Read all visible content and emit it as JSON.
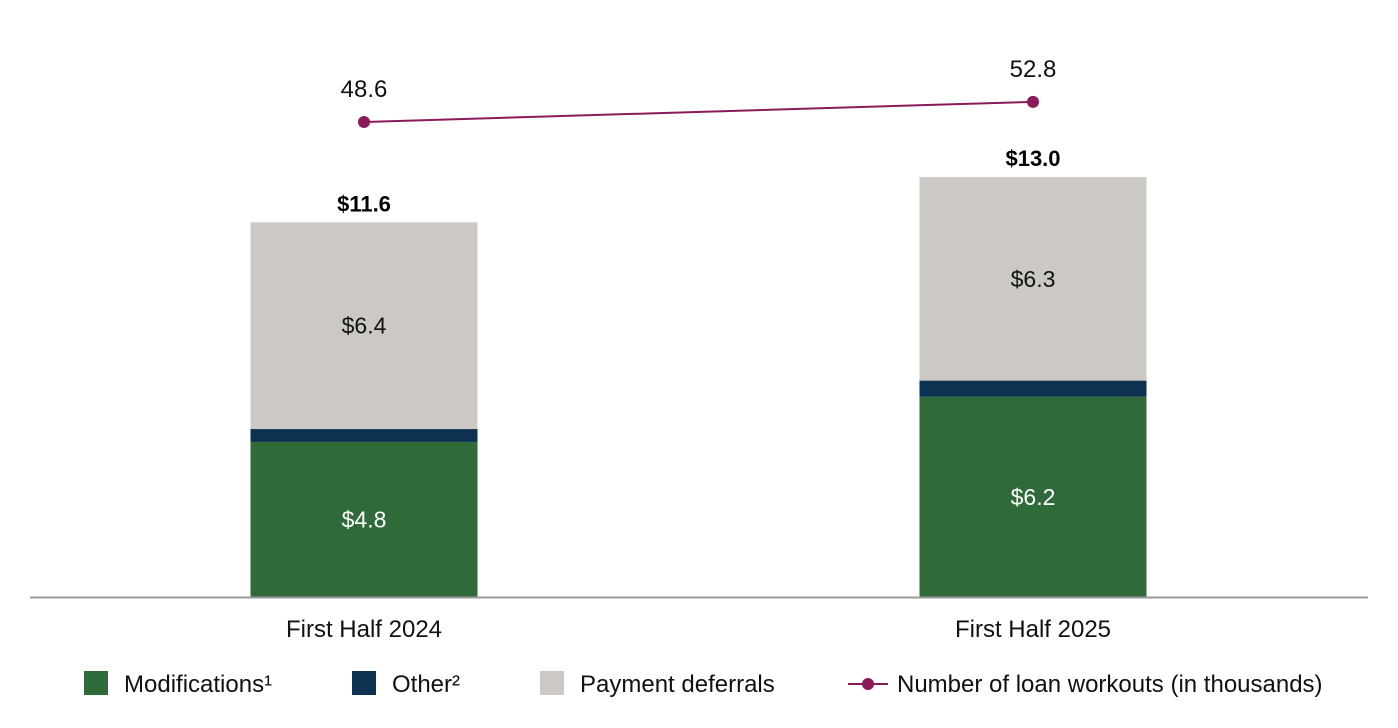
{
  "chart_data": {
    "type": "bar",
    "stacked": true,
    "categories": [
      "First Half 2024",
      "First Half 2025"
    ],
    "series": [
      {
        "name": "Modifications¹",
        "values": [
          4.8,
          6.2
        ],
        "labels": [
          "$4.8",
          "$6.2"
        ],
        "color": "#2e6b38",
        "label_color": "#ffffff"
      },
      {
        "name": "Other²",
        "values": [
          0.4,
          0.5
        ],
        "labels": [
          "",
          ""
        ],
        "color": "#0d3251",
        "label_color": "#ffffff"
      },
      {
        "name": "Payment deferrals",
        "values": [
          6.4,
          6.3
        ],
        "labels": [
          "$6.4",
          "$6.3"
        ],
        "color": "#ccc9c4",
        "label_color": "#111111"
      }
    ],
    "totals": [
      11.6,
      13.0
    ],
    "total_labels": [
      "$11.6",
      "$13.0"
    ],
    "line_series": {
      "name": "Number of loan workouts (in thousands)",
      "values": [
        48.6,
        52.8
      ],
      "labels": [
        "48.6",
        "52.8"
      ],
      "color": "#8b1a5a"
    },
    "legend_position": "bottom",
    "grid": false
  }
}
